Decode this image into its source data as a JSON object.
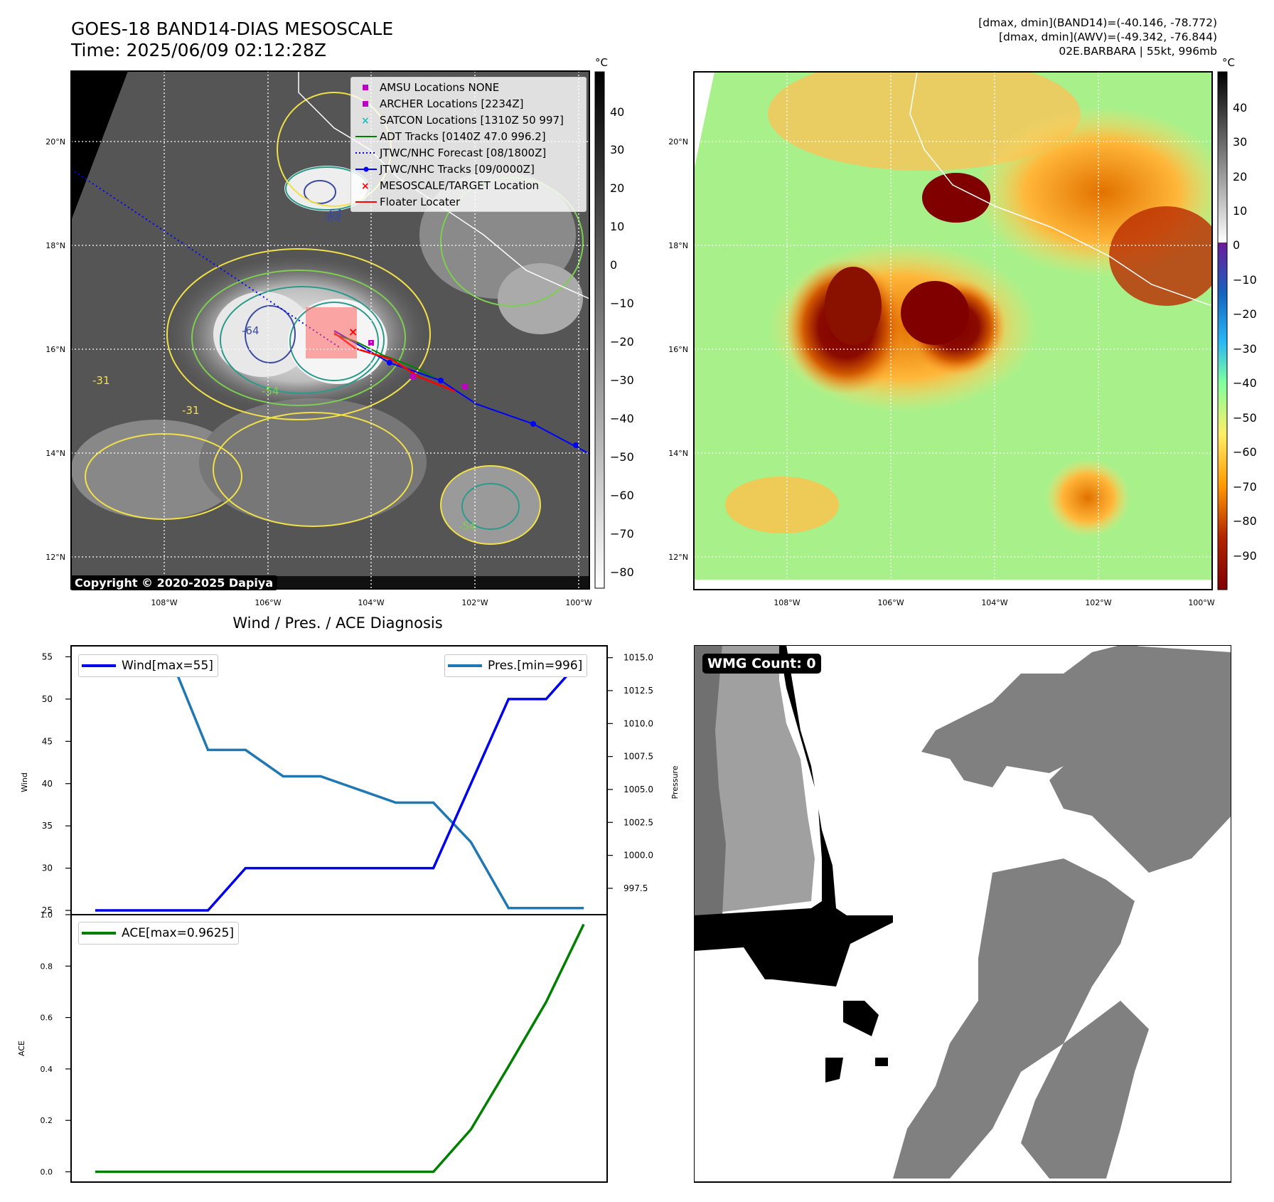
{
  "header": {
    "title": "GOES-18 BAND14-DIAS MESOSCALE",
    "time": "Time: 2025/06/09 02:12:28Z",
    "info_line1": "[dmax, dmin](BAND14)=(-40.146, -78.772)",
    "info_line2": "[dmax, dmin](AWV)=(-49.342, -76.844)",
    "info_line3": "02E.BARBARA | 55kt, 996mb"
  },
  "map_left": {
    "unit": "°C",
    "colorbar_ticks": [
      "40",
      "30",
      "20",
      "10",
      "0",
      "−10",
      "−20",
      "−30",
      "−40",
      "−50",
      "−60",
      "−70",
      "−80"
    ],
    "lat_labels": [
      "20°N",
      "18°N",
      "16°N",
      "14°N",
      "12°N"
    ],
    "lon_labels": [
      "108°W",
      "106°W",
      "104°W",
      "102°W",
      "100°W"
    ],
    "contour_labels": [
      "-64",
      "-64",
      "-64",
      "-54",
      "-31",
      "-31",
      "-54"
    ],
    "copyright": "Copyright © 2020-2025 Dapiya",
    "legend": [
      {
        "label": "AMSU Locations NONE",
        "icon": "magenta-square",
        "color": "#c000c0"
      },
      {
        "label": "ARCHER Locations [2234Z]",
        "icon": "magenta-square",
        "color": "#c000c0"
      },
      {
        "label": "SATCON Locations [1310Z 50 997]",
        "icon": "cyan-x",
        "color": "#20c0c0"
      },
      {
        "label": "ADT Tracks [0140Z 47.0 996.2]",
        "icon": "green-line",
        "color": "#008000"
      },
      {
        "label": "JTWC/NHC Forecast [08/1800Z]",
        "icon": "blue-dotted-line",
        "color": "#0000ff"
      },
      {
        "label": "JTWC/NHC Tracks [09/0000Z]",
        "icon": "blue-line-dot",
        "color": "#0000ff"
      },
      {
        "label": "MESOSCALE/TARGET Location",
        "icon": "red-x",
        "color": "#ff0000"
      },
      {
        "label": "Floater Locater",
        "icon": "red-line",
        "color": "#ff0000"
      }
    ]
  },
  "map_right": {
    "unit": "°C",
    "colorbar_ticks": [
      "40",
      "30",
      "20",
      "10",
      "0",
      "−10",
      "−20",
      "−30",
      "−40",
      "−50",
      "−60",
      "−70",
      "−80",
      "−90"
    ],
    "lat_labels": [
      "20°N",
      "18°N",
      "16°N",
      "14°N",
      "12°N"
    ],
    "lon_labels": [
      "108°W",
      "106°W",
      "104°W",
      "102°W",
      "100°W"
    ]
  },
  "diagnosis": {
    "subtitle": "Wind / Pres. / ACE Diagnosis",
    "wind_ylabel": "Wind",
    "pressure_ylabel": "Pressure",
    "ace_ylabel": "ACE",
    "wind_legend": "Wind[max=55]",
    "pressure_legend": "Pres.[min=996]",
    "ace_legend": "ACE[max=0.9625]",
    "wind_ticks": [
      "55",
      "50",
      "45",
      "40",
      "35",
      "30",
      "25"
    ],
    "pressure_ticks": [
      "1015.0",
      "1012.5",
      "1010.0",
      "1007.5",
      "1005.0",
      "1002.5",
      "1000.0",
      "997.5"
    ],
    "ace_ticks": [
      "1.0",
      "0.8",
      "0.6",
      "0.4",
      "0.2",
      "0.0"
    ]
  },
  "wmg": {
    "label": "WMG Count: 0"
  },
  "chart_data": [
    {
      "type": "line",
      "title": "Wind / Pres. / ACE Diagnosis",
      "x": [
        0,
        1,
        2,
        3,
        4,
        5,
        6,
        7,
        8,
        9,
        10,
        11,
        12,
        13
      ],
      "series": [
        {
          "name": "Wind[max=55]",
          "axis": "left",
          "color": "#0000ee",
          "values": [
            25,
            25,
            25,
            25,
            30,
            30,
            30,
            30,
            30,
            30,
            40,
            50,
            50,
            55
          ]
        },
        {
          "name": "Pres.[min=996]",
          "axis": "right",
          "color": "#1f77b4",
          "values": [
            1015,
            1015,
            1015,
            1008,
            1008,
            1006,
            1006,
            1005,
            1004,
            1004,
            1001,
            996,
            996,
            996
          ]
        }
      ],
      "ylabel": "Wind",
      "ylabel_right": "Pressure",
      "ylim": [
        24.5,
        56.3
      ],
      "ylim_right": [
        995.5,
        1015.9
      ]
    },
    {
      "type": "line",
      "x": [
        0,
        1,
        2,
        3,
        4,
        5,
        6,
        7,
        8,
        9,
        10,
        11,
        12,
        13
      ],
      "series": [
        {
          "name": "ACE[max=0.9625]",
          "color": "#008000",
          "values": [
            0,
            0,
            0,
            0,
            0,
            0,
            0,
            0,
            0,
            0,
            0.165,
            0.41,
            0.66,
            0.9625
          ]
        }
      ],
      "ylabel": "ACE",
      "ylim": [
        -0.04,
        1.0
      ]
    }
  ]
}
